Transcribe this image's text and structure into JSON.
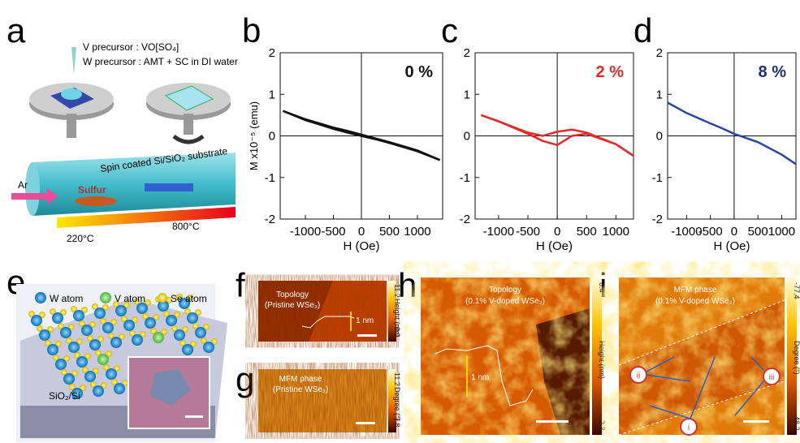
{
  "panel_labels": [
    "a",
    "b",
    "c",
    "d",
    "e",
    "f",
    "g",
    "h",
    "i"
  ],
  "chart_data": [
    {
      "type": "line",
      "ylabel": "M x10⁻⁵ (emu)",
      "xlabel": "H (Oe)",
      "annotation": "0 %",
      "annotation_color": "#111111",
      "x": [
        -1400,
        -1000,
        -500,
        -250,
        0,
        250,
        500,
        1000,
        1400
      ],
      "xlim": [
        -1450,
        1450
      ],
      "xticks": [
        -1000,
        -500,
        0,
        500,
        1000
      ],
      "ylim": [
        -2,
        2
      ],
      "yticks": [
        -2,
        -1,
        0,
        1,
        2
      ],
      "series": [
        {
          "color": "#111111",
          "values": [
            0.6,
            0.4,
            0.2,
            0.12,
            0.03,
            -0.06,
            -0.15,
            -0.35,
            -0.58
          ]
        },
        {
          "color": "#111111",
          "values": [
            0.6,
            0.38,
            0.17,
            0.08,
            0,
            -0.08,
            -0.17,
            -0.37,
            -0.58
          ]
        }
      ]
    },
    {
      "type": "line",
      "xlabel": "H (Oe)",
      "annotation": "2 %",
      "annotation_color": "#e8292a",
      "x": [
        -1300,
        -1000,
        -500,
        -250,
        0,
        250,
        500,
        1000,
        1300
      ],
      "xlim": [
        -1400,
        1300
      ],
      "xticks": [
        -1000,
        -500,
        0,
        500,
        1000
      ],
      "ylim": [
        -2,
        2
      ],
      "yticks": [
        -2,
        -1,
        0,
        1,
        2
      ],
      "series": [
        {
          "color": "#e8292a",
          "values": [
            0.5,
            0.35,
            0.08,
            0.0,
            0.1,
            0.15,
            0.08,
            -0.2,
            -0.48
          ]
        },
        {
          "color": "#e8292a",
          "values": [
            0.5,
            0.35,
            0.05,
            -0.12,
            -0.22,
            0.0,
            0.05,
            -0.2,
            -0.48
          ]
        }
      ]
    },
    {
      "type": "line",
      "xlabel": "H (Oe)",
      "annotation": "8 %",
      "annotation_color": "#1f2d7a",
      "x": [
        -1400,
        -1000,
        -500,
        -250,
        0,
        250,
        500,
        1000,
        1300
      ],
      "xlim": [
        -1400,
        1300
      ],
      "xticks": [
        -1000,
        -500,
        0,
        500,
        1000
      ],
      "ylim": [
        -2,
        2
      ],
      "yticks": [
        -2,
        -1,
        0,
        1,
        2
      ],
      "series": [
        {
          "color": "#2a45a8",
          "values": [
            0.8,
            0.55,
            0.3,
            0.18,
            0.05,
            -0.05,
            -0.15,
            -0.45,
            -0.68
          ]
        }
      ]
    }
  ],
  "schematic_a": {
    "v_precursor": "V precursor : VO[SO₄]",
    "w_precursor": "W precursor : AMT + SC in DI water",
    "gas": "Ar",
    "sulfur": "Sulfur",
    "substrate": "Spin coated Si/SiO₂ substrate",
    "t_low": "220°C",
    "t_high": "800°C"
  },
  "schematic_e": {
    "legend": [
      "W atom",
      "V atom",
      "Se atom"
    ],
    "substrate": "SiO₂/Si"
  },
  "afm": {
    "f": {
      "title": "Topology",
      "subtitle": "(Pristine WSe₂)",
      "scale": "1 nm",
      "cmax": "11.2",
      "cmin": "0.0",
      "unit": "Height (nm)"
    },
    "g": {
      "title": "MFM phase",
      "subtitle": "(Pristine WSe₂)",
      "cmax": "11.2",
      "cmin": "7.8",
      "unit": "Degree (°)"
    },
    "h": {
      "title": "Topology",
      "subtitle": "(0.1% V-doped WSe₂)",
      "scale": "1 nm",
      "cmax": "6.4",
      "cmin": "2.3",
      "unit": "Height (nm)"
    },
    "i": {
      "title": "MFM phase",
      "subtitle": "(0.1% V-doped WSe₂)",
      "markers": [
        "ii",
        "iii",
        "i"
      ],
      "cmax": "-77.4",
      "cmin": "-48.2",
      "unit": "Degree (°)"
    }
  }
}
